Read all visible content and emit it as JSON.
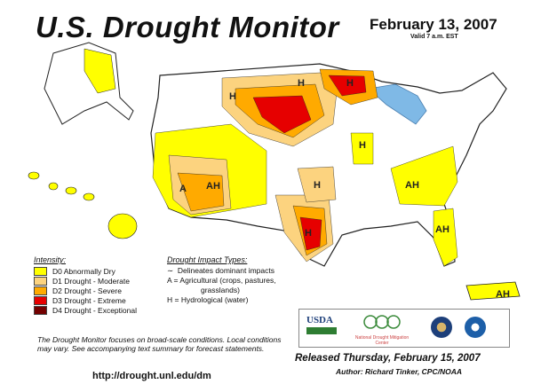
{
  "title": "U.S. Drought Monitor",
  "date": "February 13, 2007",
  "valid_time": "Valid 7 a.m. EST",
  "legend": {
    "heading": "Intensity:",
    "items": [
      {
        "label": "D0 Abnormally Dry",
        "color": "#ffff00"
      },
      {
        "label": "D1 Drought - Moderate",
        "color": "#fcd37f"
      },
      {
        "label": "D2 Drought - Severe",
        "color": "#ffaa00"
      },
      {
        "label": "D3 Drought - Extreme",
        "color": "#e60000"
      },
      {
        "label": "D4 Drought - Exceptional",
        "color": "#730000"
      }
    ]
  },
  "impact": {
    "heading": "Drought Impact Types:",
    "line1": "Delineates dominant impacts",
    "line2": "A = Agricultural (crops, pastures,",
    "line3": "grasslands)",
    "line4": "H = Hydrological (water)"
  },
  "map_labels": [
    "H",
    "H",
    "H",
    "H",
    "H",
    "H",
    "A",
    "AH",
    "AH",
    "AH",
    "AH"
  ],
  "note": "The Drought Monitor focuses on broad-scale conditions. Local conditions may vary. See accompanying text summary for forecast statements.",
  "url": "http://drought.unl.edu/dm",
  "logos": {
    "usda": "USDA",
    "ndmc": "National Drought Mitigation Center"
  },
  "released": "Released Thursday, February 15, 2007",
  "author": "Author: Richard Tinker, CPC/NOAA"
}
